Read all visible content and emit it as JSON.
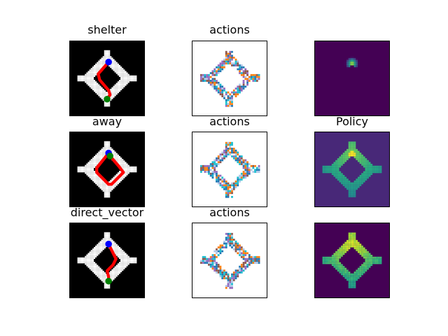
{
  "figure": {
    "background": "#ffffff"
  },
  "chart_data": [
    {
      "type": "heatmap",
      "panel": "row1-col1",
      "title": "shelter",
      "background": "#000000",
      "arena": "white diamond ring",
      "path_color": "#ff0000",
      "start_marker_color": "#0000ff",
      "end_marker_color": "#008000",
      "path": [
        [
          0.52,
          0.28
        ],
        [
          0.38,
          0.44
        ],
        [
          0.4,
          0.52
        ],
        [
          0.52,
          0.66
        ],
        [
          0.54,
          0.72
        ],
        [
          0.5,
          0.78
        ]
      ]
    },
    {
      "type": "heatmap",
      "panel": "row1-col2",
      "title": "actions",
      "background": "#ffffff",
      "palette": [
        "#1f77b4",
        "#ff7f0e",
        "#9467bd",
        "#8c564b",
        "#17becf",
        "#aec7e8"
      ]
    },
    {
      "type": "heatmap",
      "panel": "row1-col3",
      "title": "",
      "colormap": "viridis",
      "background": "#440154",
      "hotspot": [
        0.5,
        0.3
      ]
    },
    {
      "type": "heatmap",
      "panel": "row2-col1",
      "title": "away",
      "background": "#000000",
      "arena": "white diamond ring",
      "path_color": "#ff0000",
      "start_marker_color": "#0000ff",
      "end_marker_color": "#008000",
      "path": [
        [
          0.52,
          0.28
        ],
        [
          0.36,
          0.48
        ],
        [
          0.36,
          0.54
        ],
        [
          0.52,
          0.7
        ],
        [
          0.56,
          0.7
        ],
        [
          0.72,
          0.54
        ],
        [
          0.66,
          0.46
        ],
        [
          0.54,
          0.32
        ]
      ]
    },
    {
      "type": "heatmap",
      "panel": "row2-col2",
      "title": "actions",
      "background": "#ffffff",
      "palette": [
        "#1f77b4",
        "#ff7f0e",
        "#9467bd",
        "#8c564b",
        "#17becf",
        "#aec7e8"
      ]
    },
    {
      "type": "heatmap",
      "panel": "row2-col3",
      "title": "Policy",
      "colormap": "viridis",
      "background": "#482878",
      "hotspot": [
        0.5,
        0.3
      ]
    },
    {
      "type": "heatmap",
      "panel": "row3-col1",
      "title": "direct_vector",
      "background": "#000000",
      "arena": "white diamond ring",
      "path_color": "#ff0000",
      "start_marker_color": "#0000ff",
      "end_marker_color": "#008000",
      "path": [
        [
          0.52,
          0.28
        ],
        [
          0.58,
          0.4
        ],
        [
          0.62,
          0.48
        ],
        [
          0.58,
          0.56
        ],
        [
          0.5,
          0.64
        ],
        [
          0.52,
          0.72
        ],
        [
          0.52,
          0.78
        ]
      ]
    },
    {
      "type": "heatmap",
      "panel": "row3-col2",
      "title": "actions",
      "background": "#ffffff",
      "palette": [
        "#1f77b4",
        "#ff7f0e",
        "#9467bd",
        "#8c564b",
        "#17becf",
        "#aec7e8"
      ]
    },
    {
      "type": "heatmap",
      "panel": "row3-col3",
      "title": "",
      "colormap": "viridis",
      "background": "#440154",
      "hotspot": [
        0.5,
        0.3
      ]
    }
  ]
}
